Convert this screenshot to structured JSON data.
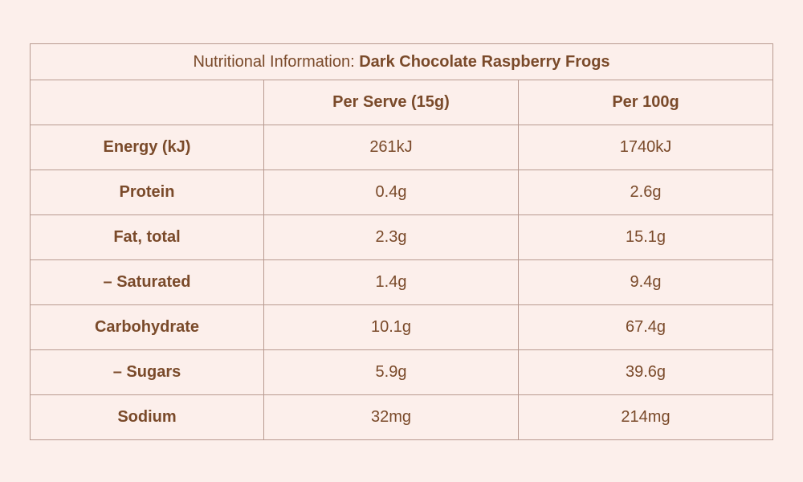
{
  "table": {
    "title_prefix": "Nutritional Information: ",
    "title_product": "Dark Chocolate Raspberry Frogs",
    "columns": [
      "",
      "Per Serve (15g)",
      "Per 100g"
    ],
    "rows": [
      {
        "label": "Energy (kJ)",
        "per_serve": "261kJ",
        "per_100g": "1740kJ"
      },
      {
        "label": "Protein",
        "per_serve": "0.4g",
        "per_100g": "2.6g"
      },
      {
        "label": "Fat, total",
        "per_serve": "2.3g",
        "per_100g": "15.1g"
      },
      {
        "label": "– Saturated",
        "per_serve": "1.4g",
        "per_100g": "9.4g"
      },
      {
        "label": "Carbohydrate",
        "per_serve": "10.1g",
        "per_100g": "67.4g"
      },
      {
        "label": "– Sugars",
        "per_serve": "5.9g",
        "per_100g": "39.6g"
      },
      {
        "label": "Sodium",
        "per_serve": "32mg",
        "per_100g": "214mg"
      }
    ]
  },
  "colors": {
    "background": "#fcefeb",
    "text": "#7a4a2a",
    "border": "#b89a90"
  }
}
